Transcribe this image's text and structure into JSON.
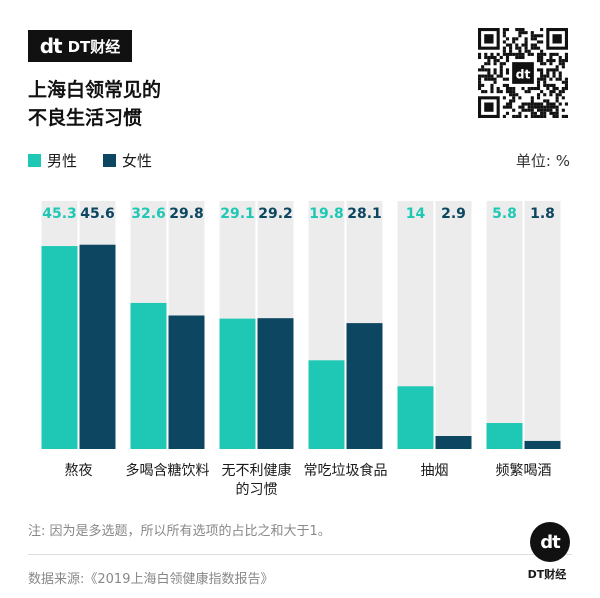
{
  "brand": {
    "logo_mark": "dt",
    "logo_text": "DT财经",
    "footer_text": "DT财经"
  },
  "title_lines": [
    "上海白领常见的",
    "不良生活习惯"
  ],
  "unit": "单位: %",
  "note": "注: 因为是多选题，所以所有选项的占比之和大于1。",
  "source": "数据来源:《2019上海白领健康指数报告》",
  "colors": {
    "male": "#1fc8b4",
    "female": "#0d4660",
    "track": "#ececec"
  },
  "chart_data": {
    "type": "bar",
    "categories": [
      "熬夜",
      "多喝含糖饮料",
      "无不利健康\n的习惯",
      "常吃垃圾食品",
      "抽烟",
      "频繁喝酒"
    ],
    "series": [
      {
        "name": "男性",
        "values": [
          45.3,
          32.6,
          29.1,
          19.8,
          14,
          5.8
        ]
      },
      {
        "name": "女性",
        "values": [
          45.6,
          29.8,
          29.2,
          28.1,
          2.9,
          1.8
        ]
      }
    ],
    "value_labels": [
      [
        "45.3",
        "32.6",
        "29.1",
        "19.8",
        "14",
        "5.8"
      ],
      [
        "45.6",
        "29.8",
        "29.2",
        "28.1",
        "2.9",
        "1.8"
      ]
    ],
    "ylim": [
      0,
      50
    ],
    "legend_position": "top-left",
    "grid": false
  }
}
